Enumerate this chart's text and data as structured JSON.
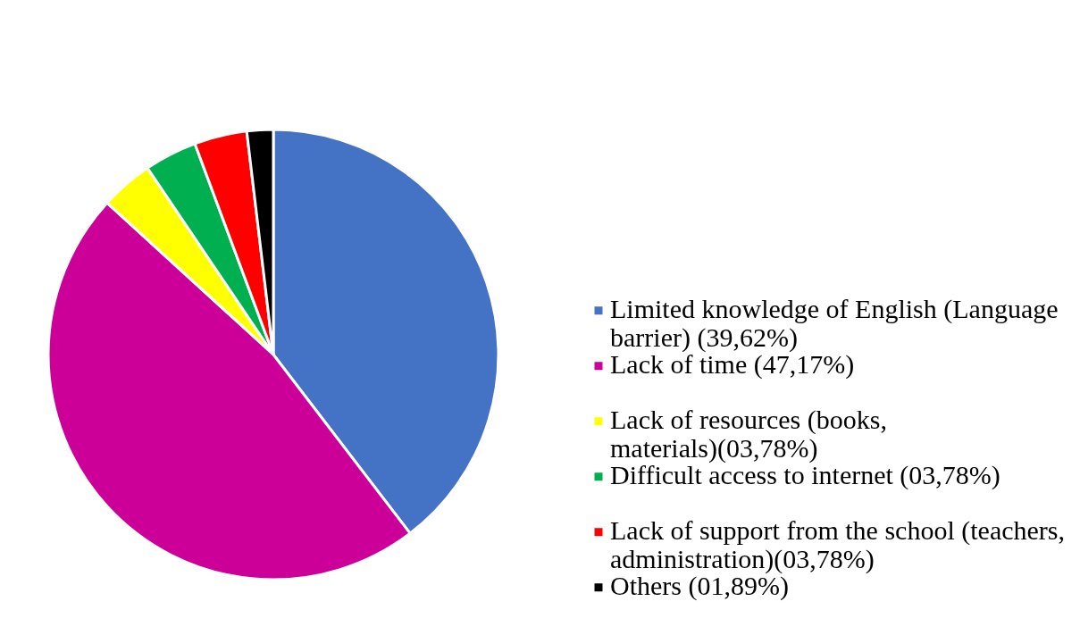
{
  "chart_data": {
    "type": "pie",
    "categories": [
      "Limited knowledge of English (Language barrier) (39,62%)",
      "Lack of time (47,17%)",
      "Lack of resources (books, materials)(03,78%)",
      "Difficult access to internet (03,78%)",
      "Lack of support from the school (teachers, administration)(03,78%)",
      "Others (01,89%)"
    ],
    "values": [
      39.62,
      47.17,
      3.78,
      3.78,
      3.78,
      1.89
    ],
    "colors": [
      "#4472c4",
      "#cc0099",
      "#ffff00",
      "#00b050",
      "#ff0000",
      "#000000"
    ],
    "legend": "right"
  }
}
